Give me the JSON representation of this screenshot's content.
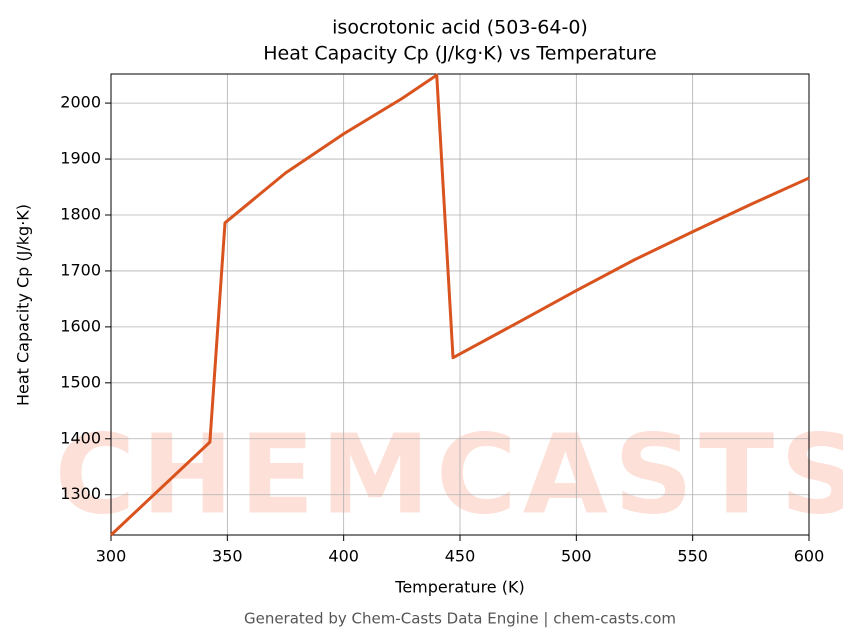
{
  "chart_data": {
    "type": "line",
    "title": "isocrotonic acid (503-64-0)",
    "subtitle": "Heat Capacity Cp (J/kg·K) vs Temperature",
    "xlabel": "Temperature (K)",
    "ylabel": "Heat Capacity Cp (J/kg·K)",
    "footer": "Generated by Chem-Casts Data Engine | chem-casts.com",
    "watermark": "CHEMCASTS",
    "x": [
      300,
      342.5,
      349,
      375,
      400,
      425,
      440,
      447,
      475,
      500,
      525,
      550,
      575,
      600
    ],
    "series": [
      {
        "name": "Cp",
        "color": "#d9531e",
        "values": [
          1228,
          1394,
          1786,
          1875,
          1945,
          2008,
          2050,
          1545,
          1608,
          1665,
          1720,
          1770,
          1819,
          1866
        ]
      }
    ],
    "xlim": [
      300,
      600
    ],
    "xticks": [
      300,
      350,
      400,
      450,
      500,
      550,
      600
    ],
    "ylim": [
      1228,
      2052
    ],
    "yticks": [
      1300,
      1400,
      1500,
      1600,
      1700,
      1800,
      1900,
      2000
    ],
    "grid": true
  }
}
